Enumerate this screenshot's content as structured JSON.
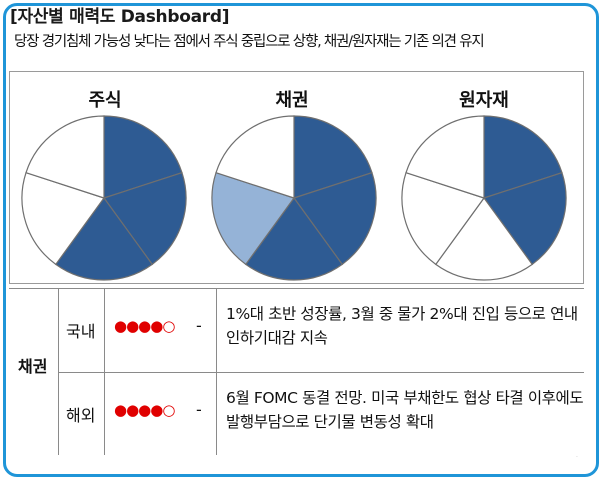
{
  "title": "[자산별 매력도 Dashboard]",
  "subtitle": "당장 경기침체 가능성 낮다는 점에서 주식 중립으로 상향, 채권/원자재는 기존 의견 유지",
  "colors": {
    "frame": "#1f95d8",
    "dark_fill": "#2e5b93",
    "light_fill": "#95b3d7",
    "empty_fill": "#ffffff",
    "dot": "#e00000"
  },
  "chart_data": [
    {
      "type": "pie",
      "title": "주식",
      "total_slices": 5,
      "slices": [
        "dark",
        "dark",
        "dark",
        "empty",
        "empty"
      ]
    },
    {
      "type": "pie",
      "title": "채권",
      "total_slices": 5,
      "slices": [
        "dark",
        "dark",
        "dark",
        "light",
        "empty"
      ]
    },
    {
      "type": "pie",
      "title": "원자재",
      "total_slices": 5,
      "slices": [
        "dark",
        "dark",
        "empty",
        "empty",
        "empty"
      ]
    }
  ],
  "table": {
    "category": "채권",
    "rows": [
      {
        "region": "국내",
        "filled_dots": 4,
        "total_dots": 5,
        "rating_text": "●●●●○",
        "dash": "-",
        "description": "1%대 초반 성장률, 3월 중 물가 2%대 진입 등으로 연내 인하기대감 지속"
      },
      {
        "region": "해외",
        "filled_dots": 4,
        "total_dots": 5,
        "rating_text": "●●●●○",
        "dash": "-",
        "description": "6월 FOMC 동결 전망. 미국 부채한도 협상 타결 이후에도 발행부담으로 단기물 변동성 확대"
      }
    ]
  }
}
